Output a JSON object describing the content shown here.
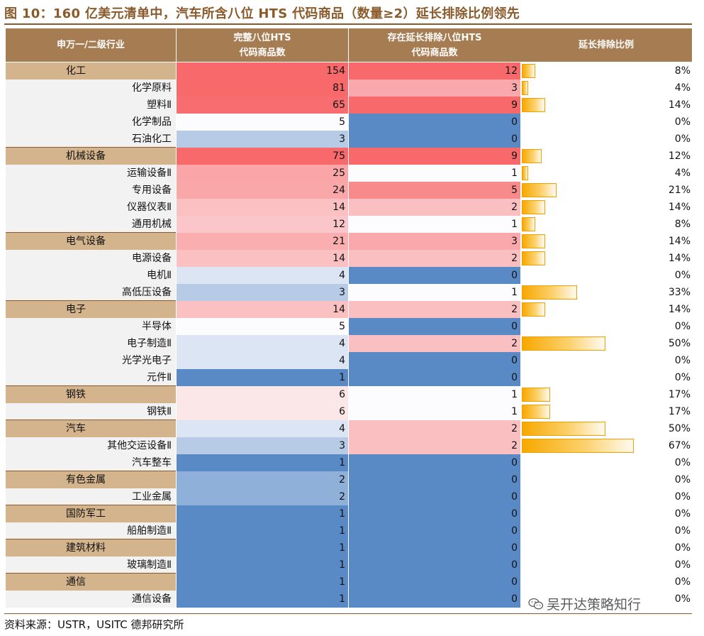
{
  "title": "图 10：160 亿美元清单中，汽车所含八位 HTS 代码商品（数量≥2）延长排除比例领先",
  "headers": {
    "col0": "申万一/二级行业",
    "col1_line1": "完整八位HTS",
    "col1_line2": "代码商品数",
    "col2_line1": "存在延长排除八位HTS",
    "col2_line2": "代码商品数",
    "col3": "延长排除比例"
  },
  "footer": "资料来源：USTR，USITC 德邦研究所",
  "watermark": "吴开达策略知行",
  "colors": {
    "header_bg": "#a67c52",
    "level1_bg": "#d4b48c",
    "level2_bg": "#f2f2f2",
    "high": "#f8696b",
    "mid": "#fcfcff",
    "low": "#5a8ac6",
    "bar": "#f7a800"
  },
  "chart_data": {
    "type": "table",
    "title": "160 亿美元清单中，汽车所含八位 HTS 代码商品（数量≥2）延长排除比例领先",
    "columns": [
      "申万一/二级行业",
      "完整八位HTS代码商品数",
      "存在延长排除八位HTS代码商品数",
      "延长排除比例"
    ],
    "rows": [
      {
        "label": "化工",
        "level": 1,
        "total": 154,
        "excluded": 12,
        "ratio": 8,
        "ratio_label": "8%"
      },
      {
        "label": "化学原料",
        "level": 2,
        "total": 81,
        "excluded": 3,
        "ratio": 4,
        "ratio_label": "4%"
      },
      {
        "label": "塑料Ⅱ",
        "level": 2,
        "total": 65,
        "excluded": 9,
        "ratio": 14,
        "ratio_label": "14%"
      },
      {
        "label": "化学制品",
        "level": 2,
        "total": 5,
        "excluded": 0,
        "ratio": 0,
        "ratio_label": "0%"
      },
      {
        "label": "石油化工",
        "level": 2,
        "total": 3,
        "excluded": 0,
        "ratio": 0,
        "ratio_label": "0%"
      },
      {
        "label": "机械设备",
        "level": 1,
        "total": 75,
        "excluded": 9,
        "ratio": 12,
        "ratio_label": "12%"
      },
      {
        "label": "运输设备Ⅱ",
        "level": 2,
        "total": 25,
        "excluded": 1,
        "ratio": 4,
        "ratio_label": "4%"
      },
      {
        "label": "专用设备",
        "level": 2,
        "total": 24,
        "excluded": 5,
        "ratio": 21,
        "ratio_label": "21%"
      },
      {
        "label": "仪器仪表Ⅱ",
        "level": 2,
        "total": 14,
        "excluded": 2,
        "ratio": 14,
        "ratio_label": "14%"
      },
      {
        "label": "通用机械",
        "level": 2,
        "total": 12,
        "excluded": 1,
        "ratio": 8,
        "ratio_label": "8%"
      },
      {
        "label": "电气设备",
        "level": 1,
        "total": 21,
        "excluded": 3,
        "ratio": 14,
        "ratio_label": "14%"
      },
      {
        "label": "电源设备",
        "level": 2,
        "total": 14,
        "excluded": 2,
        "ratio": 14,
        "ratio_label": "14%"
      },
      {
        "label": "电机Ⅱ",
        "level": 2,
        "total": 4,
        "excluded": 0,
        "ratio": 0,
        "ratio_label": "0%"
      },
      {
        "label": "高低压设备",
        "level": 2,
        "total": 3,
        "excluded": 1,
        "ratio": 33,
        "ratio_label": "33%"
      },
      {
        "label": "电子",
        "level": 1,
        "total": 14,
        "excluded": 2,
        "ratio": 14,
        "ratio_label": "14%"
      },
      {
        "label": "半导体",
        "level": 2,
        "total": 5,
        "excluded": 0,
        "ratio": 0,
        "ratio_label": "0%"
      },
      {
        "label": "电子制造Ⅱ",
        "level": 2,
        "total": 4,
        "excluded": 2,
        "ratio": 50,
        "ratio_label": "50%"
      },
      {
        "label": "光学光电子",
        "level": 2,
        "total": 4,
        "excluded": 0,
        "ratio": 0,
        "ratio_label": "0%"
      },
      {
        "label": "元件Ⅱ",
        "level": 2,
        "total": 1,
        "excluded": 0,
        "ratio": 0,
        "ratio_label": "0%"
      },
      {
        "label": "钢铁",
        "level": 1,
        "total": 6,
        "excluded": 1,
        "ratio": 17,
        "ratio_label": "17%"
      },
      {
        "label": "钢铁Ⅱ",
        "level": 2,
        "total": 6,
        "excluded": 1,
        "ratio": 17,
        "ratio_label": "17%"
      },
      {
        "label": "汽车",
        "level": 1,
        "total": 4,
        "excluded": 2,
        "ratio": 50,
        "ratio_label": "50%"
      },
      {
        "label": "其他交运设备Ⅱ",
        "level": 2,
        "total": 3,
        "excluded": 2,
        "ratio": 67,
        "ratio_label": "67%"
      },
      {
        "label": "汽车整车",
        "level": 2,
        "total": 1,
        "excluded": 0,
        "ratio": 0,
        "ratio_label": "0%"
      },
      {
        "label": "有色金属",
        "level": 1,
        "total": 2,
        "excluded": 0,
        "ratio": 0,
        "ratio_label": "0%"
      },
      {
        "label": "工业金属",
        "level": 2,
        "total": 2,
        "excluded": 0,
        "ratio": 0,
        "ratio_label": "0%"
      },
      {
        "label": "国防军工",
        "level": 1,
        "total": 1,
        "excluded": 0,
        "ratio": 0,
        "ratio_label": "0%"
      },
      {
        "label": "船舶制造Ⅱ",
        "level": 2,
        "total": 1,
        "excluded": 0,
        "ratio": 0,
        "ratio_label": "0%"
      },
      {
        "label": "建筑材料",
        "level": 1,
        "total": 1,
        "excluded": 0,
        "ratio": 0,
        "ratio_label": "0%"
      },
      {
        "label": "玻璃制造Ⅱ",
        "level": 2,
        "total": 1,
        "excluded": 0,
        "ratio": 0,
        "ratio_label": "0%"
      },
      {
        "label": "通信",
        "level": 1,
        "total": 1,
        "excluded": 0,
        "ratio": 0,
        "ratio_label": "0%"
      },
      {
        "label": "通信设备",
        "level": 2,
        "total": 1,
        "excluded": 0,
        "ratio": 0,
        "ratio_label": "0%"
      }
    ]
  }
}
